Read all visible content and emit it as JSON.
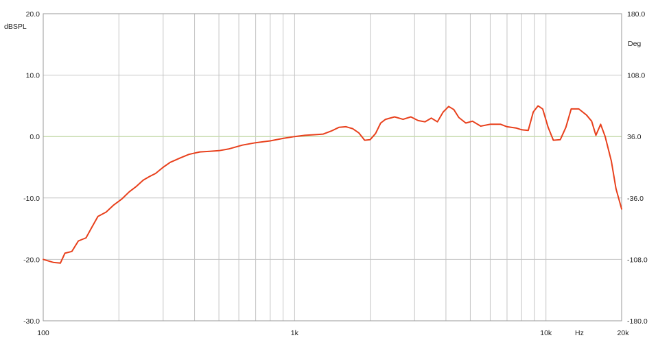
{
  "chart_data": {
    "type": "line",
    "x_scale": "log",
    "xlim": [
      100,
      20000
    ],
    "ylim": [
      -30,
      20
    ],
    "y2lim": [
      -180,
      180
    ],
    "ylabel": "dBSPL",
    "y2label": "Deg",
    "xunit": "Hz",
    "grid": true,
    "zero_line": true,
    "colors": {
      "series": "#e8401c",
      "grid": "#c4c4c4",
      "zero_line": "#c9dcb0",
      "frame": "#9a9a9a",
      "background": "#ffffff"
    },
    "x_tick_labels": [
      {
        "value": 100,
        "label": "100"
      },
      {
        "value": 1000,
        "label": "1k"
      },
      {
        "value": 10000,
        "label": "10k"
      },
      {
        "value": 20000,
        "label": "20k"
      }
    ],
    "x_gridlines": [
      200,
      300,
      400,
      500,
      600,
      700,
      800,
      900,
      1000,
      2000,
      3000,
      4000,
      5000,
      6000,
      7000,
      8000,
      9000,
      10000
    ],
    "y_tick_labels": [
      {
        "value": 20,
        "label": "20.0"
      },
      {
        "value": 10,
        "label": "10.0"
      },
      {
        "value": 0,
        "label": "0.0"
      },
      {
        "value": -10,
        "label": "-10.0"
      },
      {
        "value": -20,
        "label": "-20.0"
      },
      {
        "value": -30,
        "label": "-30.0"
      }
    ],
    "y2_tick_labels": [
      {
        "value": 180,
        "label": "180.0"
      },
      {
        "value": 108,
        "label": "108.0"
      },
      {
        "value": 36,
        "label": "36.0"
      },
      {
        "value": -36,
        "label": "-36.0"
      },
      {
        "value": -108,
        "label": "-108.0"
      },
      {
        "value": -180,
        "label": "-180.0"
      }
    ],
    "series": [
      {
        "x": [
          100,
          110,
          117,
          122,
          130,
          138,
          148,
          155,
          165,
          178,
          190,
          205,
          220,
          235,
          250,
          265,
          280,
          300,
          320,
          350,
          380,
          420,
          460,
          500,
          550,
          620,
          700,
          800,
          900,
          1000,
          1100,
          1200,
          1300,
          1400,
          1500,
          1600,
          1700,
          1800,
          1900,
          2000,
          2100,
          2200,
          2300,
          2500,
          2700,
          2900,
          3100,
          3300,
          3500,
          3700,
          3900,
          4100,
          4300,
          4500,
          4800,
          5100,
          5500,
          6000,
          6600,
          7000,
          7600,
          8000,
          8500,
          8900,
          9300,
          9700,
          10200,
          10700,
          11400,
          12000,
          12600,
          13500,
          14500,
          15200,
          15800,
          16500,
          17200,
          18200,
          19000,
          20000
        ],
        "y": [
          -20.0,
          -20.5,
          -20.6,
          -19.0,
          -18.7,
          -17.0,
          -16.5,
          -15.0,
          -13.0,
          -12.3,
          -11.2,
          -10.2,
          -9.0,
          -8.1,
          -7.1,
          -6.5,
          -6.0,
          -5.0,
          -4.2,
          -3.5,
          -2.9,
          -2.5,
          -2.4,
          -2.3,
          -2.0,
          -1.4,
          -1.0,
          -0.7,
          -0.3,
          0.0,
          0.2,
          0.3,
          0.4,
          0.9,
          1.5,
          1.6,
          1.3,
          0.6,
          -0.6,
          -0.5,
          0.5,
          2.2,
          2.8,
          3.2,
          2.8,
          3.2,
          2.6,
          2.4,
          3.0,
          2.4,
          4.0,
          4.9,
          4.4,
          3.1,
          2.2,
          2.5,
          1.7,
          2.0,
          2.0,
          1.6,
          1.4,
          1.1,
          1.0,
          4.0,
          5.0,
          4.5,
          1.5,
          -0.6,
          -0.5,
          1.5,
          4.5,
          4.5,
          3.5,
          2.5,
          0.2,
          2.0,
          0.0,
          -4.0,
          -8.5,
          -11.8
        ]
      }
    ]
  }
}
